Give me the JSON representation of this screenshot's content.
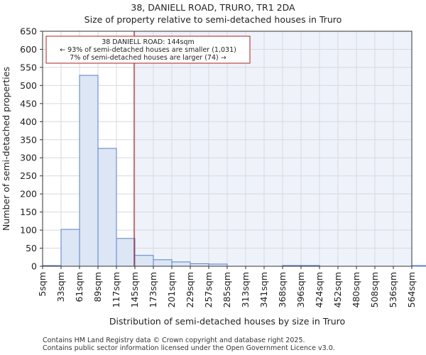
{
  "header": {
    "title": "38, DANIELL ROAD, TRURO, TR1 2DA",
    "subtitle": "Size of property relative to semi-detached houses in Truro"
  },
  "footer": {
    "line1": "Contains HM Land Registry data © Crown copyright and database right 2025.",
    "line2": "Contains public sector information licensed under the Open Government Licence v3.0."
  },
  "colors": {
    "bar_fill": "#dce6f5",
    "bar_edge": "#5b7fc4",
    "highlight_bg": "#eef2fb",
    "marker": "#b22222",
    "grid": "#d9d9d9"
  },
  "chart_data": {
    "type": "bar",
    "xlabel": "Distribution of semi-detached houses by size in Truro",
    "ylabel": "Number of semi-detached properties",
    "ylim": [
      0,
      650
    ],
    "yticks": [
      0,
      50,
      100,
      150,
      200,
      250,
      300,
      350,
      400,
      450,
      500,
      550,
      600,
      650
    ],
    "categories": [
      "5sqm",
      "33sqm",
      "61sqm",
      "89sqm",
      "117sqm",
      "145sqm",
      "173sqm",
      "201sqm",
      "229sqm",
      "257sqm",
      "285sqm",
      "313sqm",
      "341sqm",
      "368sqm",
      "396sqm",
      "424sqm",
      "452sqm",
      "480sqm",
      "508sqm",
      "536sqm",
      "564sqm"
    ],
    "values": [
      2,
      102,
      528,
      326,
      77,
      30,
      18,
      12,
      7,
      6,
      0,
      0,
      0,
      2,
      2,
      0,
      0,
      0,
      0,
      0,
      2
    ],
    "grid": true,
    "marker": {
      "value_sqm": 144,
      "bin_position": 4.96
    },
    "annotation": {
      "line1": "38 DANIELL ROAD: 144sqm",
      "line2": "← 93% of semi-detached houses are smaller (1,031)",
      "line3": "7% of semi-detached houses are larger (74) →"
    }
  }
}
